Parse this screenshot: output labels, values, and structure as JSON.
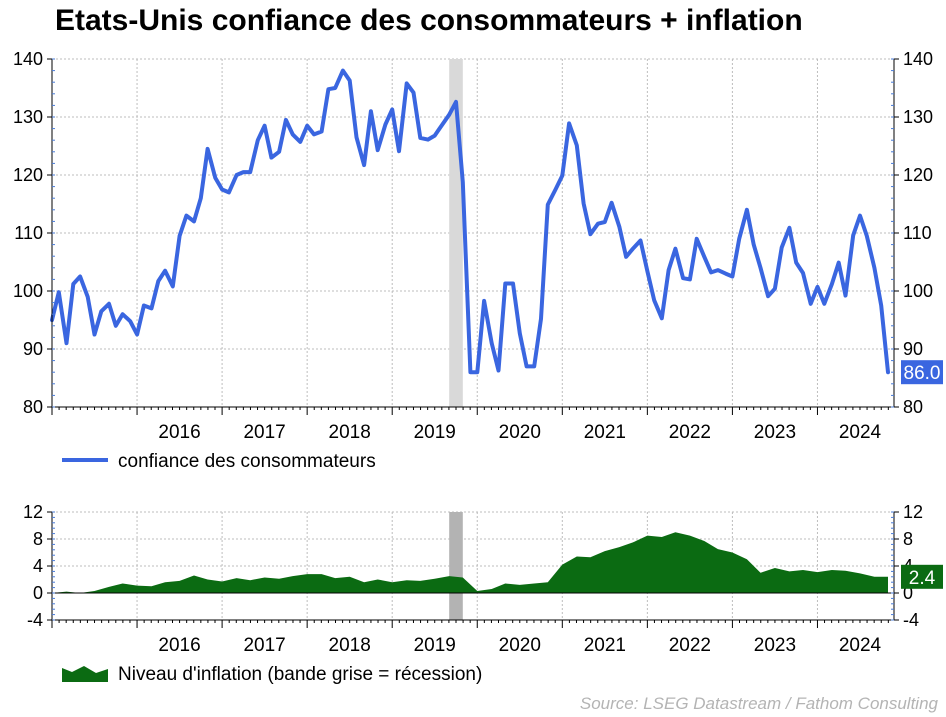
{
  "page": {
    "title": "Etats-Unis confiance des consommateurs + inflation",
    "source": "Source: LSEG Datastream / Fathom Consulting"
  },
  "colors": {
    "confidence_line": "#3a66e0",
    "inflation_area": "#0b6b12",
    "recession_band_top": "#d9d9d9",
    "recession_band_bottom": "#b3b3b3",
    "last_value_confidence_bg": "#3a66e0",
    "last_value_inflation_bg": "#0b6b12",
    "grid": "#bdbdbd"
  },
  "chart_data": [
    {
      "type": "line",
      "panel": "top",
      "title": "Etats-Unis confiance des consommateurs + inflation",
      "xlabel": "",
      "ylabel": "",
      "xlim": [
        2015.0,
        2024.9
      ],
      "ylim": [
        80,
        140
      ],
      "yticks": [
        80,
        90,
        100,
        110,
        120,
        130,
        140
      ],
      "xtick_labels": [
        "2016",
        "2017",
        "2018",
        "2019",
        "2020",
        "2021",
        "2022",
        "2023",
        "2024"
      ],
      "grid": true,
      "legend_position": "bottom-left",
      "recession_band": [
        2019.67,
        2019.83
      ],
      "last_value_label": "86.0",
      "series": [
        {
          "name": "confiance des consommateurs",
          "x": [
            2015.0,
            2015.08,
            2015.17,
            2015.25,
            2015.33,
            2015.42,
            2015.5,
            2015.58,
            2015.67,
            2015.75,
            2015.83,
            2015.92,
            2016.0,
            2016.08,
            2016.17,
            2016.25,
            2016.33,
            2016.42,
            2016.5,
            2016.58,
            2016.67,
            2016.75,
            2016.83,
            2016.92,
            2017.0,
            2017.08,
            2017.17,
            2017.25,
            2017.33,
            2017.42,
            2017.5,
            2017.58,
            2017.67,
            2017.75,
            2017.83,
            2017.92,
            2018.0,
            2018.08,
            2018.17,
            2018.25,
            2018.33,
            2018.42,
            2018.5,
            2018.58,
            2018.67,
            2018.75,
            2018.83,
            2018.92,
            2019.0,
            2019.08,
            2019.17,
            2019.25,
            2019.33,
            2019.42,
            2019.5,
            2019.58,
            2019.67,
            2019.75,
            2019.83,
            2019.92,
            2020.0,
            2020.08,
            2020.17,
            2020.25,
            2020.33,
            2020.42,
            2020.5,
            2020.58,
            2020.67,
            2020.75,
            2020.83,
            2020.92,
            2021.0,
            2021.08,
            2021.17,
            2021.25,
            2021.33,
            2021.42,
            2021.5,
            2021.58,
            2021.67,
            2021.75,
            2021.83,
            2021.92,
            2022.0,
            2022.08,
            2022.17,
            2022.25,
            2022.33,
            2022.42,
            2022.5,
            2022.58,
            2022.67,
            2022.75,
            2022.83,
            2022.92,
            2023.0,
            2023.08,
            2023.17,
            2023.25,
            2023.33,
            2023.42,
            2023.5,
            2023.58,
            2023.67,
            2023.75,
            2023.83,
            2023.92,
            2024.0,
            2024.08,
            2024.17,
            2024.25,
            2024.33,
            2024.42,
            2024.5,
            2024.58,
            2024.67,
            2024.75,
            2024.83
          ],
          "values": [
            95.0,
            99.8,
            91.0,
            101.2,
            102.5,
            99.0,
            92.5,
            96.5,
            97.8,
            94.0,
            96.0,
            94.8,
            92.5,
            97.5,
            97.0,
            101.7,
            103.5,
            100.8,
            109.5,
            113.0,
            112.0,
            116.0,
            124.5,
            119.5,
            117.5,
            117.0,
            120.0,
            120.5,
            120.5,
            126.0,
            128.5,
            123.0,
            124.0,
            129.5,
            127.0,
            125.7,
            128.5,
            127.0,
            127.5,
            134.8,
            135.0,
            138.0,
            136.3,
            126.5,
            121.7,
            131.0,
            124.3,
            128.7,
            131.3,
            124.1,
            135.8,
            134.2,
            126.4,
            126.1,
            126.8,
            128.5,
            130.4,
            132.6,
            118.8,
            86.0,
            86.0,
            98.3,
            91.0,
            86.3,
            101.3,
            101.3,
            92.7,
            87.0,
            87.0,
            95.2,
            114.9,
            117.5,
            119.9,
            128.9,
            125.1,
            115.1,
            109.8,
            111.6,
            111.9,
            115.2,
            111.1,
            105.9,
            107.3,
            108.7,
            103.4,
            98.4,
            95.3,
            103.6,
            107.3,
            102.2,
            102.0,
            109.0,
            105.9,
            103.2,
            103.6,
            103.0,
            102.5,
            109.0,
            114.0,
            108.0,
            104.0,
            99.1,
            100.4,
            107.5,
            110.9,
            104.9,
            103.1,
            97.8,
            100.7,
            97.8,
            101.2,
            104.9,
            99.2,
            109.6,
            113.0,
            109.5,
            104.0,
            97.5,
            86.0
          ]
        }
      ]
    },
    {
      "type": "area",
      "panel": "bottom",
      "xlabel": "",
      "ylabel": "",
      "xlim": [
        2015.0,
        2024.9
      ],
      "ylim": [
        -4,
        12
      ],
      "yticks": [
        -4,
        0,
        4,
        8,
        12
      ],
      "xtick_labels": [
        "2016",
        "2017",
        "2018",
        "2019",
        "2020",
        "2021",
        "2022",
        "2023",
        "2024"
      ],
      "grid": true,
      "legend_position": "bottom-left",
      "recession_band": [
        2019.67,
        2019.83
      ],
      "last_value_label": "2.4",
      "series": [
        {
          "name": "Niveau d'inflation (bande grise = récession)",
          "x": [
            2015.0,
            2015.17,
            2015.33,
            2015.5,
            2015.67,
            2015.83,
            2016.0,
            2016.17,
            2016.33,
            2016.5,
            2016.67,
            2016.83,
            2017.0,
            2017.17,
            2017.33,
            2017.5,
            2017.67,
            2017.83,
            2018.0,
            2018.17,
            2018.33,
            2018.5,
            2018.67,
            2018.83,
            2019.0,
            2019.17,
            2019.33,
            2019.5,
            2019.67,
            2019.83,
            2020.0,
            2020.17,
            2020.33,
            2020.5,
            2020.67,
            2020.83,
            2021.0,
            2021.17,
            2021.33,
            2021.5,
            2021.67,
            2021.83,
            2022.0,
            2022.17,
            2022.33,
            2022.5,
            2022.67,
            2022.83,
            2023.0,
            2023.17,
            2023.33,
            2023.5,
            2023.67,
            2023.83,
            2024.0,
            2024.17,
            2024.33,
            2024.5,
            2024.67,
            2024.83
          ],
          "values": [
            0.0,
            0.2,
            0.0,
            0.3,
            0.9,
            1.4,
            1.1,
            1.0,
            1.6,
            1.8,
            2.6,
            2.0,
            1.7,
            2.2,
            1.9,
            2.3,
            2.1,
            2.5,
            2.8,
            2.8,
            2.2,
            2.4,
            1.6,
            2.0,
            1.6,
            1.9,
            1.8,
            2.1,
            2.5,
            2.3,
            0.3,
            0.6,
            1.4,
            1.2,
            1.4,
            1.6,
            4.2,
            5.4,
            5.3,
            6.2,
            6.8,
            7.5,
            8.5,
            8.3,
            9.0,
            8.5,
            7.7,
            6.5,
            6.0,
            5.0,
            3.0,
            3.7,
            3.2,
            3.4,
            3.1,
            3.4,
            3.3,
            2.9,
            2.4,
            2.4
          ]
        }
      ]
    }
  ]
}
